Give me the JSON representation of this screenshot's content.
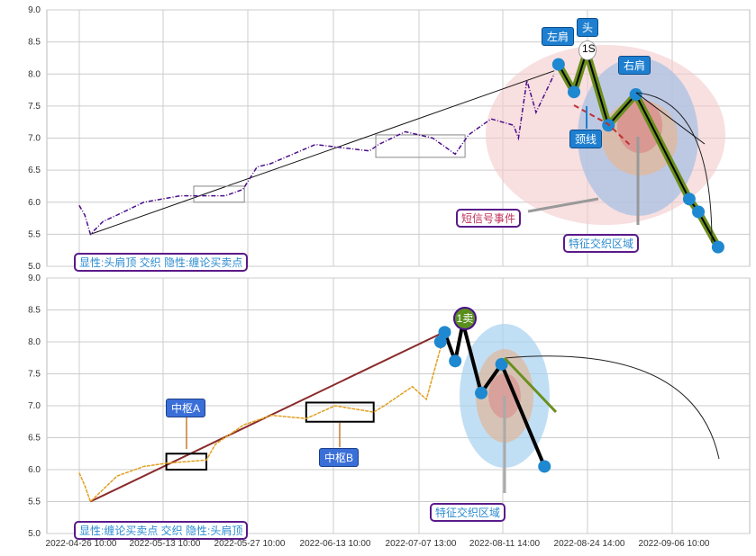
{
  "chart_data": [
    {
      "type": "line",
      "panel": "top",
      "ylim": [
        5.0,
        9.0
      ],
      "yticks": [
        "9.0",
        "8.5",
        "8.0",
        "7.5",
        "7.0",
        "6.5",
        "6.0",
        "5.5",
        "5.0"
      ],
      "xlim": [
        0,
        100
      ],
      "series": [
        {
          "name": "price",
          "color": "#4b0f8a",
          "points": [
            [
              4.6,
              5.95
            ],
            [
              5.4,
              5.8
            ],
            [
              6.2,
              5.5
            ],
            [
              8,
              5.7
            ],
            [
              10,
              5.8
            ],
            [
              13.8,
              6.0
            ],
            [
              19,
              6.1
            ],
            [
              25.4,
              6.1
            ],
            [
              27.9,
              6.2
            ],
            [
              29.9,
              6.55
            ],
            [
              31.8,
              6.6
            ],
            [
              38.2,
              6.9
            ],
            [
              45.9,
              6.8
            ],
            [
              47.2,
              6.9
            ],
            [
              51,
              7.1
            ],
            [
              54.9,
              7.0
            ],
            [
              58.1,
              6.75
            ],
            [
              60,
              7.05
            ],
            [
              63.2,
              7.3
            ],
            [
              66.4,
              7.2
            ],
            [
              67.1,
              7.0
            ],
            [
              68.3,
              7.9
            ],
            [
              69.6,
              7.4
            ],
            [
              70.9,
              7.7
            ],
            [
              72.2,
              8.0
            ]
          ]
        },
        {
          "name": "pattern",
          "color": "#6a8f1e",
          "points": [
            [
              72.8,
              8.15
            ],
            [
              75,
              7.72
            ],
            [
              76.8,
              8.35
            ],
            [
              79.9,
              7.2
            ],
            [
              83.8,
              7.68
            ],
            [
              91.4,
              6.05
            ],
            [
              92.7,
              5.85
            ],
            [
              95.5,
              5.3
            ]
          ]
        }
      ],
      "trend": [
        [
          6.2,
          5.5
        ],
        [
          72.2,
          8.05
        ]
      ],
      "boxes": [
        [
          20.9,
          28.1,
          6.0,
          6.25
        ],
        [
          46.8,
          59.5,
          6.7,
          7.05
        ]
      ],
      "labels": {
        "left_shoulder": "左肩",
        "head": "头",
        "right_shoulder": "右肩",
        "signal": "1S",
        "neckline": "颈线",
        "short_event": "短信号事件",
        "zone": "特征交织区域",
        "legend": "显性:头肩顶 交织 隐性:缠论买卖点"
      }
    },
    {
      "type": "line",
      "panel": "bottom",
      "ylim": [
        5.0,
        9.0
      ],
      "yticks": [
        "9.0",
        "8.5",
        "8.0",
        "7.5",
        "7.0",
        "6.5",
        "6.0",
        "5.5",
        "5.0"
      ],
      "xlim": [
        0,
        100
      ],
      "series": [
        {
          "name": "price",
          "color": "#e0a020",
          "points": [
            [
              4.6,
              5.95
            ],
            [
              5.4,
              5.75
            ],
            [
              6.2,
              5.5
            ],
            [
              10,
              5.9
            ],
            [
              13.8,
              6.05
            ],
            [
              17,
              6.1
            ],
            [
              22.7,
              6.15
            ],
            [
              24,
              6.4
            ],
            [
              28,
              6.7
            ],
            [
              32,
              6.85
            ],
            [
              36.9,
              6.8
            ],
            [
              41,
              7.0
            ],
            [
              46.5,
              6.9
            ],
            [
              48,
              7.0
            ],
            [
              52,
              7.3
            ],
            [
              54,
              7.1
            ],
            [
              56,
              7.9
            ],
            [
              57.4,
              8.2
            ]
          ]
        },
        {
          "name": "pattern",
          "color": "#111111",
          "points": [
            [
              56,
              8.0
            ],
            [
              56.6,
              8.15
            ],
            [
              58.1,
              7.7
            ],
            [
              59.2,
              8.3
            ],
            [
              61.8,
              7.2
            ],
            [
              64.7,
              7.65
            ],
            [
              70.8,
              6.05
            ]
          ]
        }
      ],
      "trend": [
        [
          6.2,
          5.5
        ],
        [
          57.4,
          8.2
        ]
      ],
      "boxes": [
        [
          17,
          22.7,
          6.0,
          6.25
        ],
        [
          36.9,
          46.5,
          6.75,
          7.05
        ]
      ],
      "labels": {
        "zs_a": "中枢A",
        "zs_b": "中枢B",
        "signal": "1卖",
        "zone": "特征交织区域",
        "legend": "显性:缠论买卖点 交织 隐性:头肩顶"
      }
    }
  ],
  "xaxis": [
    "2022-04-26 10:00",
    "2022-05-13 10:00",
    "2022-05-27 10:00",
    "2022-06-13 10:00",
    "2022-07-07 13:00",
    "2022-08-11 14:00",
    "2022-08-24 14:00",
    "2022-09-06 10:00"
  ]
}
